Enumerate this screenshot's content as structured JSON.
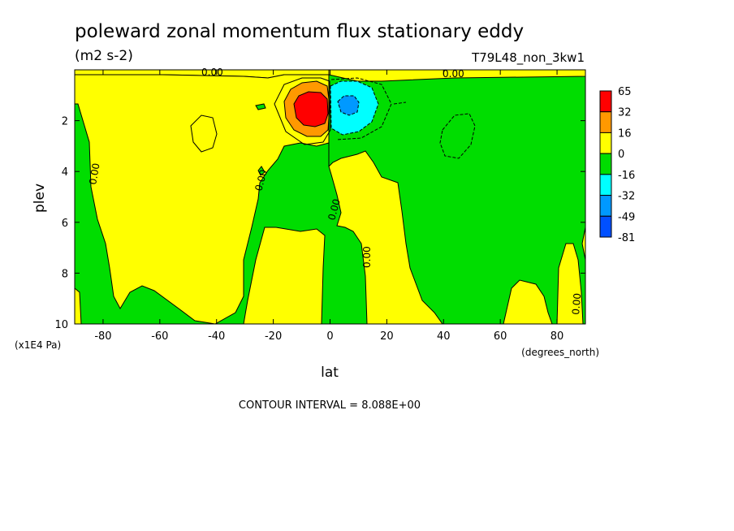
{
  "chart_data": {
    "type": "heatmap",
    "title": "poleward zonal momentum flux stationary eddy",
    "units": "(m2 s-2)",
    "experiment": "T79L48_non_3kw1",
    "xlabel": "lat",
    "xunits": "(degrees_north)",
    "ylabel": "plev",
    "yunits": "(x1E4 Pa)",
    "xlim": [
      -90,
      90
    ],
    "ylim": [
      10,
      0
    ],
    "xticks": [
      -80,
      -60,
      -40,
      -20,
      0,
      20,
      40,
      60,
      80
    ],
    "yticks": [
      2,
      4,
      6,
      8,
      10
    ],
    "contour_interval": "CONTOUR INTERVAL = 8.088E+00",
    "contour_labels": [
      "0.00",
      "0.00",
      "0.00",
      "0.00",
      "0.00",
      "0.00",
      "0.00",
      "0.00"
    ],
    "colorbar": {
      "levels": [
        "65",
        "32",
        "16",
        "0",
        "-16",
        "-32",
        "-49",
        "-81"
      ],
      "colors": [
        "#ff0000",
        "#ff9900",
        "#ffff00",
        "#00dd00",
        "#00ffff",
        "#0099ff",
        "#0050ff"
      ]
    },
    "features": {
      "positive_max": {
        "lat": -7,
        "plev": 1.5
      },
      "negative_min": {
        "lat": 7,
        "plev": 1.5
      }
    }
  }
}
